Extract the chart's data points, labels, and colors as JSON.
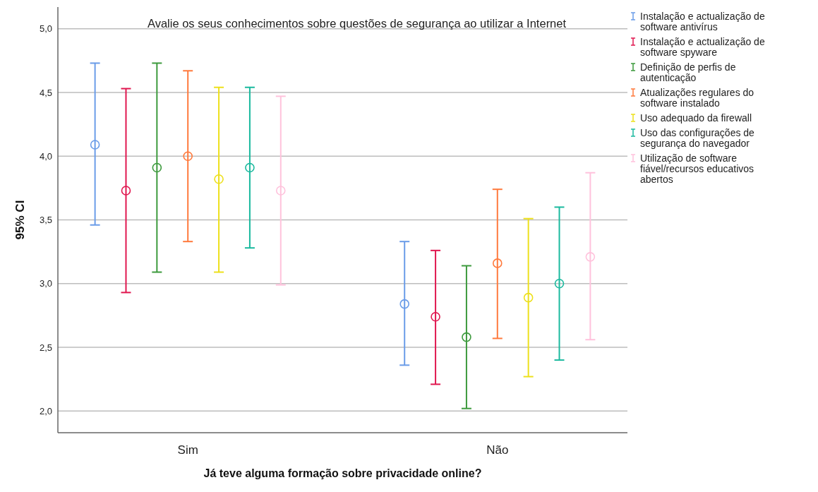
{
  "chart_data": {
    "type": "scatter",
    "title": "Avalie os seus conhecimentos sobre questões de segurança ao utilizar a Internet",
    "xlabel": "Já teve alguma formação sobre privacidade online?",
    "ylabel": "95% CI",
    "categories": [
      null,
      null,
      null,
      "Sim",
      null,
      null,
      null,
      null,
      null,
      null,
      null,
      null,
      null,
      "Não",
      null,
      null,
      null
    ],
    "series": [
      {
        "name": "Instalação e actualização de software antivírus",
        "color": "#6a9ce8",
        "values": [
          4.09,
          null,
          null,
          null,
          null,
          null,
          null,
          null,
          null,
          null,
          2.84,
          null,
          null,
          null,
          null,
          null,
          null
        ],
        "errors": [
          [
            3.46,
            4.73
          ],
          null,
          null,
          null,
          null,
          null,
          null,
          null,
          null,
          null,
          [
            2.36,
            3.33
          ],
          null,
          null,
          null,
          null,
          null,
          null
        ]
      },
      {
        "name": "Instalação e actualização de software spyware",
        "color": "#e0174f",
        "values": [
          null,
          3.73,
          null,
          null,
          null,
          null,
          null,
          null,
          null,
          null,
          null,
          2.74,
          null,
          null,
          null,
          null,
          null
        ],
        "errors": [
          null,
          [
            2.93,
            4.53
          ],
          null,
          null,
          null,
          null,
          null,
          null,
          null,
          null,
          null,
          [
            2.21,
            3.26
          ],
          null,
          null,
          null,
          null,
          null
        ]
      },
      {
        "name": "Definição de perfis de autenticação",
        "color": "#3d9a3d",
        "values": [
          null,
          null,
          3.91,
          null,
          null,
          null,
          null,
          null,
          null,
          null,
          null,
          null,
          2.58,
          null,
          null,
          null,
          null
        ],
        "errors": [
          null,
          null,
          [
            3.09,
            4.73
          ],
          null,
          null,
          null,
          null,
          null,
          null,
          null,
          null,
          null,
          [
            2.02,
            3.14
          ],
          null,
          null,
          null,
          null
        ]
      },
      {
        "name": "Atualizações regulares do software instalado",
        "color": "#ff7a3d",
        "values": [
          null,
          null,
          null,
          4.0,
          null,
          null,
          null,
          null,
          null,
          null,
          null,
          null,
          null,
          3.16,
          null,
          null,
          null
        ],
        "errors": [
          null,
          null,
          null,
          [
            3.33,
            4.67
          ],
          null,
          null,
          null,
          null,
          null,
          null,
          null,
          null,
          null,
          [
            2.57,
            3.74
          ],
          null,
          null,
          null
        ]
      },
      {
        "name": "Uso adequado da firewall",
        "color": "#ede01c",
        "values": [
          null,
          null,
          null,
          null,
          3.82,
          null,
          null,
          null,
          null,
          null,
          null,
          null,
          null,
          null,
          2.89,
          null,
          null
        ],
        "errors": [
          null,
          null,
          null,
          null,
          [
            3.09,
            4.54
          ],
          null,
          null,
          null,
          null,
          null,
          null,
          null,
          null,
          null,
          [
            2.27,
            3.51
          ],
          null,
          null
        ]
      },
      {
        "name": "Uso das configurações de segurança do navegador",
        "color": "#1ab99e",
        "values": [
          null,
          null,
          null,
          null,
          null,
          3.91,
          null,
          null,
          null,
          null,
          null,
          null,
          null,
          null,
          null,
          3.0,
          null
        ],
        "errors": [
          null,
          null,
          null,
          null,
          null,
          [
            3.28,
            4.54
          ],
          null,
          null,
          null,
          null,
          null,
          null,
          null,
          null,
          null,
          [
            2.4,
            3.6
          ],
          null
        ]
      },
      {
        "name": "Utilização de software fiável/recursos educativos abertos",
        "color": "#ffc2dc",
        "values": [
          null,
          null,
          null,
          null,
          null,
          null,
          3.73,
          null,
          null,
          null,
          null,
          null,
          null,
          null,
          null,
          null,
          3.21
        ],
        "errors": [
          null,
          null,
          null,
          null,
          null,
          null,
          [
            2.99,
            4.47
          ],
          null,
          null,
          null,
          null,
          null,
          null,
          null,
          null,
          null,
          [
            2.56,
            3.87
          ]
        ]
      }
    ],
    "ylim": [
      1.83,
      5.17
    ],
    "yticks": [
      {
        "value": 2,
        "label": "2,0"
      },
      {
        "value": 2.5,
        "label": "2,5"
      },
      {
        "value": 3,
        "label": "3,0"
      },
      {
        "value": 3.5,
        "label": "3,5"
      },
      {
        "value": 4,
        "label": "4,0"
      },
      {
        "value": 4.5,
        "label": "4,5"
      },
      {
        "value": 5,
        "label": "5,0"
      }
    ],
    "grid": "y",
    "legend": "right",
    "marker": "circle"
  }
}
